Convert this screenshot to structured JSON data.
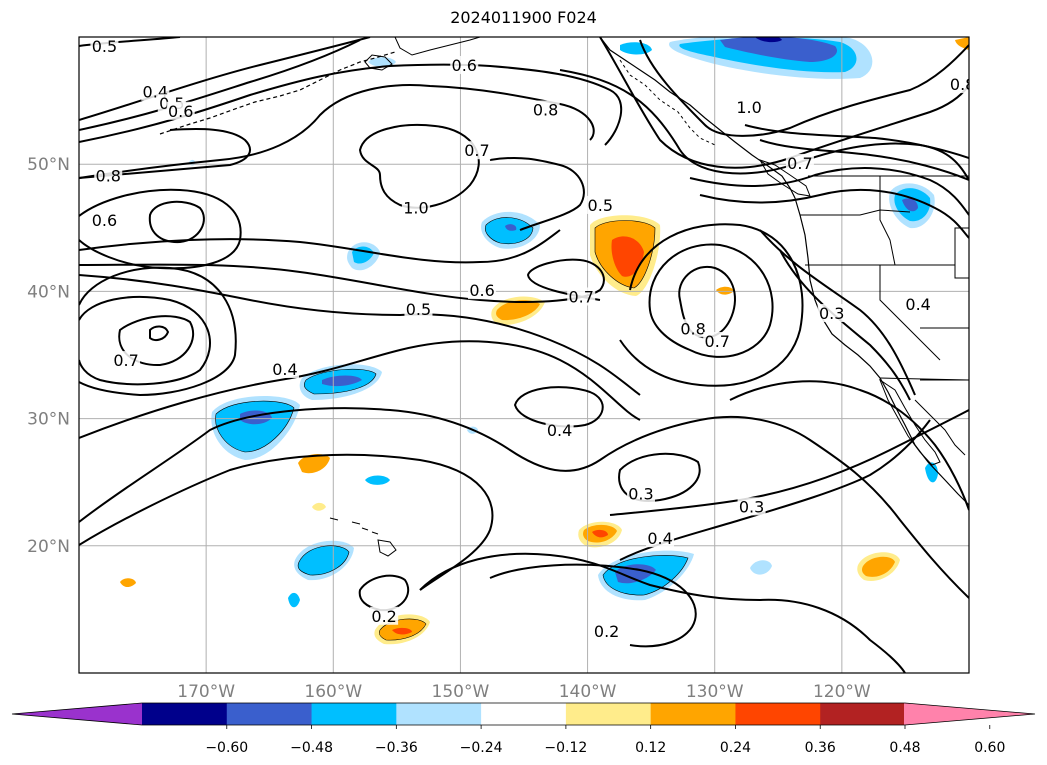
{
  "title": "2024011900 F024",
  "map": {
    "lon_range": [
      -180,
      -110
    ],
    "lat_range": [
      10,
      60
    ],
    "lon_ticks": [
      {
        "lon": -170,
        "label": "170°W"
      },
      {
        "lon": -160,
        "label": "160°W"
      },
      {
        "lon": -150,
        "label": "150°W"
      },
      {
        "lon": -140,
        "label": "140°W"
      },
      {
        "lon": -130,
        "label": "130°W"
      },
      {
        "lon": -120,
        "label": "120°W"
      }
    ],
    "lat_ticks": [
      {
        "lat": 20,
        "label": "20°N"
      },
      {
        "lat": 30,
        "label": "30°N"
      },
      {
        "lat": 40,
        "label": "40°N"
      },
      {
        "lat": 50,
        "label": "50°N"
      }
    ],
    "grid": true,
    "contour_labels": [
      {
        "text": "0.5",
        "lon": -178,
        "lat": 59.3
      },
      {
        "text": "0.4",
        "lon": -174,
        "lat": 55.7
      },
      {
        "text": "0.5",
        "lon": -172.7,
        "lat": 54.8
      },
      {
        "text": "0.6",
        "lon": -172,
        "lat": 54.2
      },
      {
        "text": "0.6",
        "lon": -149.7,
        "lat": 57.8
      },
      {
        "text": "0.8",
        "lon": -143.3,
        "lat": 54.3
      },
      {
        "text": "1.0",
        "lon": -127.3,
        "lat": 54.5
      },
      {
        "text": "0.8",
        "lon": -110.5,
        "lat": 56.3
      },
      {
        "text": "0.7",
        "lon": -148.7,
        "lat": 51.1
      },
      {
        "text": "0.8",
        "lon": -177.7,
        "lat": 49.1
      },
      {
        "text": "1.0",
        "lon": -153.5,
        "lat": 46.6
      },
      {
        "text": "0.7",
        "lon": -123.3,
        "lat": 50.1
      },
      {
        "text": "0.5",
        "lon": -139,
        "lat": 46.8
      },
      {
        "text": "0.6",
        "lon": -178,
        "lat": 45.6
      },
      {
        "text": "0.6",
        "lon": -148.3,
        "lat": 40.1
      },
      {
        "text": "0.7",
        "lon": -140.5,
        "lat": 39.6
      },
      {
        "text": "0.5",
        "lon": -153.3,
        "lat": 38.6
      },
      {
        "text": "0.8",
        "lon": -131.7,
        "lat": 37.1
      },
      {
        "text": "0.7",
        "lon": -129.8,
        "lat": 36.1
      },
      {
        "text": "0.3",
        "lon": -120.8,
        "lat": 38.3
      },
      {
        "text": "0.4",
        "lon": -114,
        "lat": 39
      },
      {
        "text": "0.7",
        "lon": -176.3,
        "lat": 34.6
      },
      {
        "text": "0.4",
        "lon": -163.8,
        "lat": 33.9
      },
      {
        "text": "0.4",
        "lon": -142.2,
        "lat": 29.1
      },
      {
        "text": "0.3",
        "lon": -135.8,
        "lat": 24.1
      },
      {
        "text": "0.3",
        "lon": -127.1,
        "lat": 23.1
      },
      {
        "text": "0.4",
        "lon": -134.3,
        "lat": 20.6
      },
      {
        "text": "0.2",
        "lon": -156,
        "lat": 14.5
      },
      {
        "text": "0.2",
        "lon": -138.5,
        "lat": 13.3
      }
    ]
  },
  "colorbar": {
    "colors": [
      "#9a32cd",
      "#00008b",
      "#3a5fcd",
      "#00bfff",
      "#b0e2ff",
      "#ffffff",
      "#ffec8b",
      "#ffa500",
      "#ff4500",
      "#b22222",
      "#ff82ab"
    ],
    "tick_labels": [
      "−0.60",
      "−0.48",
      "−0.36",
      "−0.24",
      "−0.12",
      "0.12",
      "0.24",
      "0.36",
      "0.48",
      "0.60"
    ]
  }
}
